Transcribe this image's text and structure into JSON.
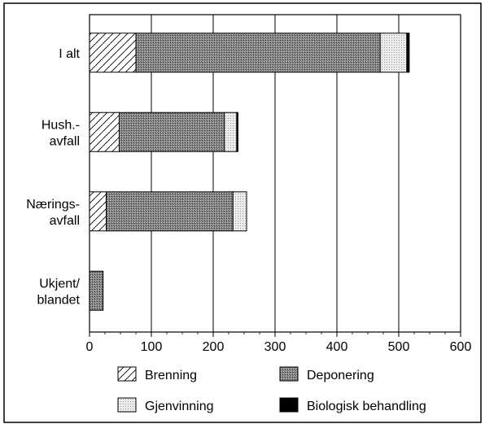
{
  "chart_data": {
    "type": "bar",
    "orientation": "horizontal",
    "stacked": true,
    "categories": [
      "I alt",
      "Hush.-\navfall",
      "Nærings-\navfall",
      "Ukjent/\nblandet"
    ],
    "series": [
      {
        "name": "Brenning",
        "color": "#ffffff",
        "pattern": "diagonal-hatch",
        "values": [
          75,
          48,
          27,
          0
        ]
      },
      {
        "name": "Deponering",
        "color": "#8a8a8a",
        "pattern": "dense-stipple",
        "values": [
          395,
          170,
          205,
          22
        ]
      },
      {
        "name": "Gjenvinning",
        "color": "#e6e6e6",
        "pattern": "light-stipple",
        "values": [
          43,
          20,
          22,
          0
        ]
      },
      {
        "name": "Biologisk behandling",
        "color": "#000000",
        "pattern": "solid",
        "values": [
          4,
          2,
          0,
          0
        ]
      }
    ],
    "xlim": [
      0,
      600
    ],
    "xticks": [
      "0",
      "100",
      "200",
      "300",
      "400",
      "500",
      "600"
    ],
    "grid": true,
    "legend_position": "bottom"
  }
}
